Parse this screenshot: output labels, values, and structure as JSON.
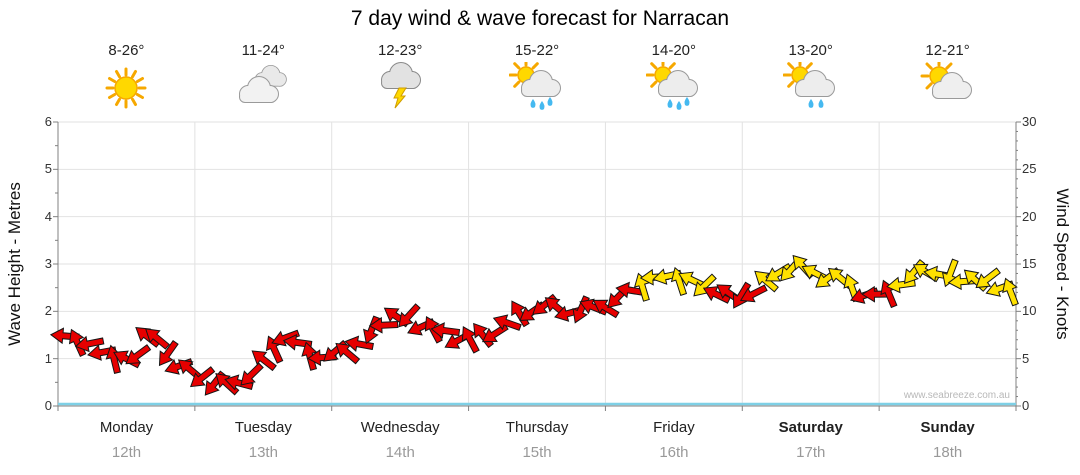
{
  "title": "7 day wind & wave forecast for Narracan",
  "watermark": "www.seabreeze.com.au",
  "axes": {
    "left_label": "Wave Height - Metres",
    "right_label": "Wind Speed - Knots",
    "left_ticks": [
      0,
      1,
      2,
      3,
      4,
      5,
      6
    ],
    "right_ticks": [
      0,
      5,
      10,
      15,
      20,
      25,
      30
    ]
  },
  "days": [
    {
      "name": "Monday",
      "date": "12th",
      "temp": "8-26°",
      "icon": "sunny",
      "weekend": false
    },
    {
      "name": "Tuesday",
      "date": "13th",
      "temp": "11-24°",
      "icon": "cloudy",
      "weekend": false
    },
    {
      "name": "Wednesday",
      "date": "14th",
      "temp": "12-23°",
      "icon": "thunderstorm",
      "weekend": false
    },
    {
      "name": "Thursday",
      "date": "15th",
      "temp": "15-22°",
      "icon": "sun-showers",
      "weekend": false
    },
    {
      "name": "Friday",
      "date": "16th",
      "temp": "14-20°",
      "icon": "sun-showers",
      "weekend": false
    },
    {
      "name": "Saturday",
      "date": "17th",
      "temp": "13-20°",
      "icon": "sun-light-showers",
      "weekend": true
    },
    {
      "name": "Sunday",
      "date": "18th",
      "temp": "12-21°",
      "icon": "partly-cloudy",
      "weekend": true
    }
  ],
  "chart_data": {
    "type": "line",
    "title": "7 day wind & wave forecast for Narracan",
    "x_axis": {
      "categories": [
        "Monday 12th",
        "Tuesday 13th",
        "Wednesday 14th",
        "Thursday 15th",
        "Friday 16th",
        "Saturday 17th",
        "Sunday 18th"
      ],
      "units": "days",
      "range": [
        0,
        7
      ]
    },
    "y_left": {
      "label": "Wave Height - Metres",
      "range": [
        0,
        6
      ],
      "ticks": [
        0,
        1,
        2,
        3,
        4,
        5,
        6
      ]
    },
    "y_right": {
      "label": "Wind Speed - Knots",
      "range": [
        0,
        30
      ],
      "ticks": [
        0,
        5,
        10,
        15,
        20,
        25,
        30
      ]
    },
    "grid": true,
    "legend": "none",
    "point_format": "[day_x, knots, color] where r=red arrows (lighter wind), y=yellow arrows (stronger wind)",
    "series": [
      {
        "name": "Wind Speed",
        "units": "knots",
        "style": "wind-arrows",
        "colors": {
          "red": "#e60000",
          "yellow": "#ffe100"
        },
        "points": [
          [
            0.05,
            7.4,
            "r"
          ],
          [
            0.14,
            7.0,
            "r"
          ],
          [
            0.23,
            6.3,
            "r"
          ],
          [
            0.32,
            5.7,
            "r"
          ],
          [
            0.41,
            5.2,
            "r"
          ],
          [
            0.5,
            4.7,
            "r"
          ],
          [
            0.58,
            5.4,
            "r"
          ],
          [
            0.65,
            7.6,
            "r"
          ],
          [
            0.72,
            6.9,
            "r"
          ],
          [
            0.8,
            5.6,
            "r"
          ],
          [
            0.88,
            4.4,
            "r"
          ],
          [
            0.96,
            3.6,
            "r"
          ],
          [
            1.05,
            3.1,
            "r"
          ],
          [
            1.14,
            2.5,
            "r"
          ],
          [
            1.23,
            2.1,
            "r"
          ],
          [
            1.32,
            2.6,
            "r"
          ],
          [
            1.41,
            3.4,
            "r"
          ],
          [
            1.5,
            4.6,
            "r"
          ],
          [
            1.58,
            6.2,
            "r"
          ],
          [
            1.66,
            7.3,
            "r"
          ],
          [
            1.75,
            6.4,
            "r"
          ],
          [
            1.84,
            5.5,
            "r"
          ],
          [
            1.93,
            5.2,
            "r"
          ],
          [
            2.02,
            5.4,
            "r"
          ],
          [
            2.11,
            5.9,
            "r"
          ],
          [
            2.2,
            6.6,
            "r"
          ],
          [
            2.29,
            7.7,
            "r"
          ],
          [
            2.38,
            8.8,
            "r"
          ],
          [
            2.47,
            9.5,
            "r"
          ],
          [
            2.56,
            9.2,
            "r"
          ],
          [
            2.65,
            8.6,
            "r"
          ],
          [
            2.74,
            8.1,
            "r"
          ],
          [
            2.83,
            7.7,
            "r"
          ],
          [
            2.92,
            7.2,
            "r"
          ],
          [
            3.01,
            7.0,
            "r"
          ],
          [
            3.1,
            7.3,
            "r"
          ],
          [
            3.19,
            7.9,
            "r"
          ],
          [
            3.28,
            8.7,
            "r"
          ],
          [
            3.37,
            9.6,
            "r"
          ],
          [
            3.46,
            10.2,
            "r"
          ],
          [
            3.55,
            10.5,
            "r"
          ],
          [
            3.64,
            10.3,
            "r"
          ],
          [
            3.73,
            10.1,
            "r"
          ],
          [
            3.82,
            10.0,
            "r"
          ],
          [
            3.91,
            10.3,
            "r"
          ],
          [
            4.0,
            10.7,
            "r"
          ],
          [
            4.09,
            11.3,
            "r"
          ],
          [
            4.18,
            12.1,
            "r"
          ],
          [
            4.27,
            12.9,
            "y"
          ],
          [
            4.36,
            13.4,
            "y"
          ],
          [
            4.45,
            13.6,
            "y"
          ],
          [
            4.54,
            13.5,
            "y"
          ],
          [
            4.63,
            13.1,
            "y"
          ],
          [
            4.72,
            12.6,
            "y"
          ],
          [
            4.81,
            12.1,
            "r"
          ],
          [
            4.9,
            11.7,
            "r"
          ],
          [
            4.99,
            11.6,
            "r"
          ],
          [
            5.08,
            12.1,
            "r"
          ],
          [
            5.17,
            13.0,
            "y"
          ],
          [
            5.26,
            14.0,
            "y"
          ],
          [
            5.35,
            14.6,
            "y"
          ],
          [
            5.44,
            14.5,
            "y"
          ],
          [
            5.53,
            14.1,
            "y"
          ],
          [
            5.62,
            13.7,
            "y"
          ],
          [
            5.71,
            13.3,
            "y"
          ],
          [
            5.8,
            12.6,
            "y"
          ],
          [
            5.89,
            11.9,
            "r"
          ],
          [
            5.98,
            11.5,
            "r"
          ],
          [
            6.07,
            12.0,
            "r"
          ],
          [
            6.16,
            13.0,
            "y"
          ],
          [
            6.25,
            13.8,
            "y"
          ],
          [
            6.34,
            14.3,
            "y"
          ],
          [
            6.43,
            14.1,
            "y"
          ],
          [
            6.52,
            13.7,
            "y"
          ],
          [
            6.61,
            13.3,
            "y"
          ],
          [
            6.7,
            13.5,
            "y"
          ],
          [
            6.79,
            13.1,
            "y"
          ],
          [
            6.88,
            12.6,
            "y"
          ],
          [
            6.96,
            12.2,
            "y"
          ]
        ]
      },
      {
        "name": "Wave Height",
        "units": "metres",
        "style": "line",
        "color": "#7ed0e6",
        "points": [
          [
            0,
            0
          ],
          [
            7,
            0
          ]
        ]
      }
    ]
  }
}
